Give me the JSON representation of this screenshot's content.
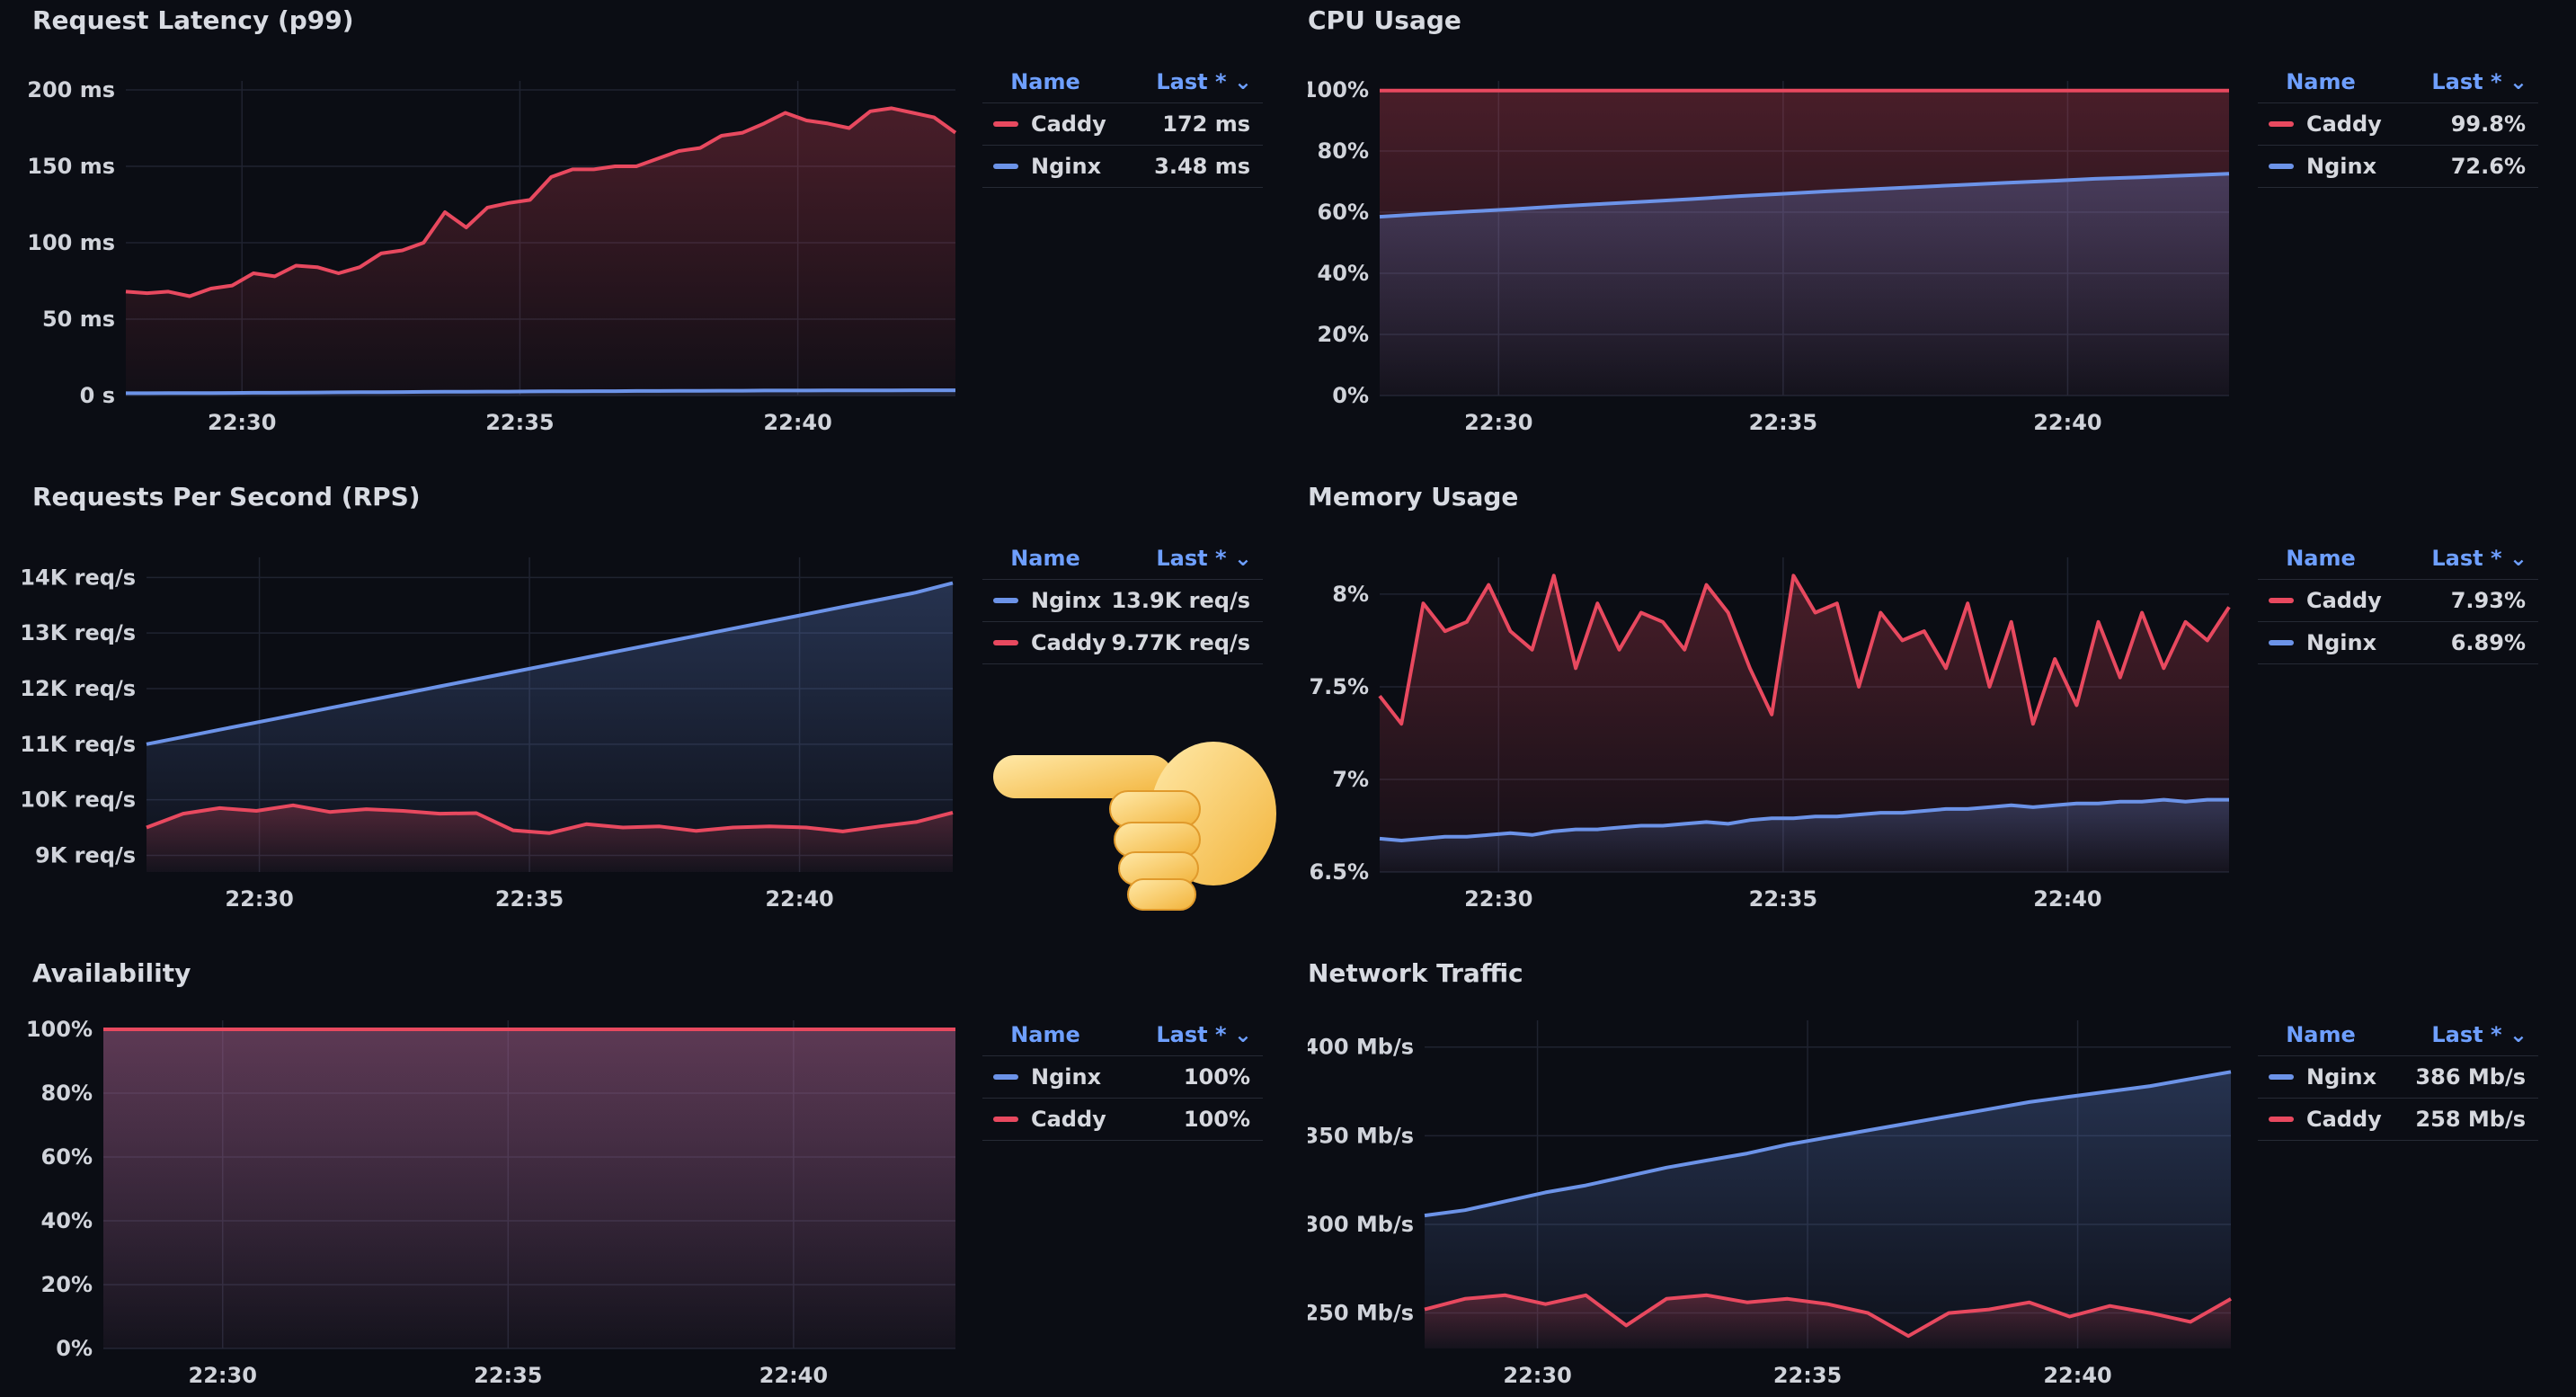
{
  "colors": {
    "caddy": "#e8495f",
    "nginx": "#6c93e8",
    "background": "#0b0d14",
    "grid": "#1f2330"
  },
  "legend_headers": {
    "name": "Name",
    "last": "Last *"
  },
  "pointing_hand_icon": "pointing-left-hand-emoji",
  "chart_data": [
    {
      "id": "latency",
      "type": "area",
      "title": "Request Latency (p99)",
      "y_ticks": [
        "0 s",
        "50 ms",
        "100 ms",
        "150 ms",
        "200 ms"
      ],
      "x_ticks": [
        "22:30",
        "22:35",
        "22:40"
      ],
      "ylim": [
        0,
        200
      ],
      "legend": [
        {
          "name": "Caddy",
          "last": "172 ms",
          "color": "#e8495f"
        },
        {
          "name": "Nginx",
          "last": "3.48 ms",
          "color": "#6c93e8"
        }
      ],
      "series": [
        {
          "name": "Caddy",
          "color": "#e8495f",
          "y": [
            68,
            67,
            68,
            65,
            70,
            72,
            80,
            78,
            85,
            84,
            80,
            84,
            93,
            95,
            100,
            120,
            110,
            123,
            126,
            128,
            143,
            148,
            148,
            150,
            150,
            155,
            160,
            162,
            170,
            172,
            178,
            185,
            180,
            178,
            175,
            186,
            188,
            185,
            182,
            172
          ]
        },
        {
          "name": "Nginx",
          "color": "#6c93e8",
          "y": [
            1.5,
            1.5,
            1.6,
            1.6,
            1.6,
            1.7,
            1.8,
            1.8,
            1.9,
            2.0,
            2.1,
            2.2,
            2.2,
            2.3,
            2.4,
            2.5,
            2.5,
            2.6,
            2.6,
            2.7,
            2.8,
            2.8,
            2.9,
            2.9,
            3.0,
            3.0,
            3.1,
            3.1,
            3.2,
            3.2,
            3.3,
            3.3,
            3.3,
            3.4,
            3.4,
            3.4,
            3.4,
            3.5,
            3.5,
            3.48
          ]
        }
      ]
    },
    {
      "id": "cpu",
      "type": "area",
      "title": "CPU Usage",
      "y_ticks": [
        "0%",
        "20%",
        "40%",
        "60%",
        "80%",
        "100%"
      ],
      "x_ticks": [
        "22:30",
        "22:35",
        "22:40"
      ],
      "ylim": [
        0,
        100
      ],
      "legend": [
        {
          "name": "Caddy",
          "last": "99.8%",
          "color": "#e8495f"
        },
        {
          "name": "Nginx",
          "last": "72.6%",
          "color": "#6c93e8"
        }
      ],
      "series": [
        {
          "name": "Caddy",
          "color": "#e8495f",
          "y": [
            99.8,
            99.8,
            99.8,
            99.8,
            99.8,
            99.8,
            99.8,
            99.8,
            99.8,
            99.8,
            99.8,
            99.8,
            99.8,
            99.8,
            99.8,
            99.8,
            99.8,
            99.8,
            99.8,
            99.8
          ]
        },
        {
          "name": "Nginx",
          "color": "#6c93e8",
          "y": [
            58.5,
            59.4,
            60.2,
            61.0,
            61.9,
            62.7,
            63.5,
            64.3,
            65.2,
            66.0,
            66.8,
            67.5,
            68.2,
            68.9,
            69.6,
            70.2,
            70.9,
            71.4,
            72.0,
            72.6
          ]
        }
      ]
    },
    {
      "id": "rps",
      "type": "area",
      "title": "Requests Per Second (RPS)",
      "y_ticks": [
        "9K req/s",
        "10K req/s",
        "11K req/s",
        "12K req/s",
        "13K req/s",
        "14K req/s"
      ],
      "x_ticks": [
        "22:30",
        "22:35",
        "22:40"
      ],
      "ylim": [
        8700,
        14200
      ],
      "legend": [
        {
          "name": "Nginx",
          "last": "13.9K req/s",
          "color": "#6c93e8"
        },
        {
          "name": "Caddy",
          "last": "9.77K req/s",
          "color": "#e8495f"
        }
      ],
      "series": [
        {
          "name": "Nginx",
          "color": "#6c93e8",
          "y": [
            11000,
            11130,
            11260,
            11390,
            11520,
            11650,
            11780,
            11910,
            12040,
            12170,
            12300,
            12430,
            12560,
            12690,
            12820,
            12950,
            13080,
            13210,
            13340,
            13470,
            13600,
            13730,
            13900
          ]
        },
        {
          "name": "Caddy",
          "color": "#e8495f",
          "y": [
            9500,
            9750,
            9850,
            9800,
            9900,
            9780,
            9830,
            9800,
            9750,
            9760,
            9450,
            9400,
            9560,
            9500,
            9520,
            9440,
            9500,
            9520,
            9500,
            9430,
            9520,
            9600,
            9770
          ]
        }
      ]
    },
    {
      "id": "memory",
      "type": "area",
      "title": "Memory Usage",
      "y_ticks": [
        "6.5%",
        "7%",
        "7.5%",
        "8%"
      ],
      "x_ticks": [
        "22:30",
        "22:35",
        "22:40"
      ],
      "ylim": [
        6.5,
        8.15
      ],
      "legend": [
        {
          "name": "Caddy",
          "last": "7.93%",
          "color": "#e8495f"
        },
        {
          "name": "Nginx",
          "last": "6.89%",
          "color": "#6c93e8"
        }
      ],
      "series": [
        {
          "name": "Caddy",
          "color": "#e8495f",
          "y": [
            7.45,
            7.3,
            7.95,
            7.8,
            7.85,
            8.05,
            7.8,
            7.7,
            8.1,
            7.6,
            7.95,
            7.7,
            7.9,
            7.85,
            7.7,
            8.05,
            7.9,
            7.6,
            7.35,
            8.1,
            7.9,
            7.95,
            7.5,
            7.9,
            7.75,
            7.8,
            7.6,
            7.95,
            7.5,
            7.85,
            7.3,
            7.65,
            7.4,
            7.85,
            7.55,
            7.9,
            7.6,
            7.85,
            7.75,
            7.93
          ]
        },
        {
          "name": "Nginx",
          "color": "#6c93e8",
          "y": [
            6.68,
            6.67,
            6.68,
            6.69,
            6.69,
            6.7,
            6.71,
            6.7,
            6.72,
            6.73,
            6.73,
            6.74,
            6.75,
            6.75,
            6.76,
            6.77,
            6.76,
            6.78,
            6.79,
            6.79,
            6.8,
            6.8,
            6.81,
            6.82,
            6.82,
            6.83,
            6.84,
            6.84,
            6.85,
            6.86,
            6.85,
            6.86,
            6.87,
            6.87,
            6.88,
            6.88,
            6.89,
            6.88,
            6.89,
            6.89
          ]
        }
      ]
    },
    {
      "id": "availability",
      "type": "area",
      "title": "Availability",
      "y_ticks": [
        "0%",
        "20%",
        "40%",
        "60%",
        "80%",
        "100%"
      ],
      "x_ticks": [
        "22:30",
        "22:35",
        "22:40"
      ],
      "ylim": [
        0,
        100
      ],
      "legend": [
        {
          "name": "Nginx",
          "last": "100%",
          "color": "#6c93e8"
        },
        {
          "name": "Caddy",
          "last": "100%",
          "color": "#e8495f"
        }
      ],
      "series": [
        {
          "name": "Nginx",
          "color": "#6c93e8",
          "y": [
            100,
            100,
            100,
            100,
            100,
            100,
            100,
            100,
            100,
            100
          ]
        },
        {
          "name": "Caddy",
          "color": "#e8495f",
          "y": [
            100,
            100,
            100,
            100,
            100,
            100,
            100,
            100,
            100,
            100
          ]
        }
      ]
    },
    {
      "id": "network",
      "type": "area",
      "title": "Network Traffic",
      "y_ticks": [
        "250 Mb/s",
        "300 Mb/s",
        "350 Mb/s",
        "400 Mb/s"
      ],
      "x_ticks": [
        "22:30",
        "22:35",
        "22:40"
      ],
      "ylim": [
        230,
        410
      ],
      "legend": [
        {
          "name": "Nginx",
          "last": "386 Mb/s",
          "color": "#6c93e8"
        },
        {
          "name": "Caddy",
          "last": "258 Mb/s",
          "color": "#e8495f"
        }
      ],
      "series": [
        {
          "name": "Nginx",
          "color": "#6c93e8",
          "y": [
            305,
            308,
            313,
            318,
            322,
            327,
            332,
            336,
            340,
            345,
            349,
            353,
            357,
            361,
            365,
            369,
            372,
            375,
            378,
            382,
            386
          ]
        },
        {
          "name": "Caddy",
          "color": "#e8495f",
          "y": [
            252,
            258,
            260,
            255,
            260,
            243,
            258,
            260,
            256,
            258,
            255,
            250,
            237,
            250,
            252,
            256,
            248,
            254,
            250,
            245,
            258
          ]
        }
      ]
    }
  ]
}
